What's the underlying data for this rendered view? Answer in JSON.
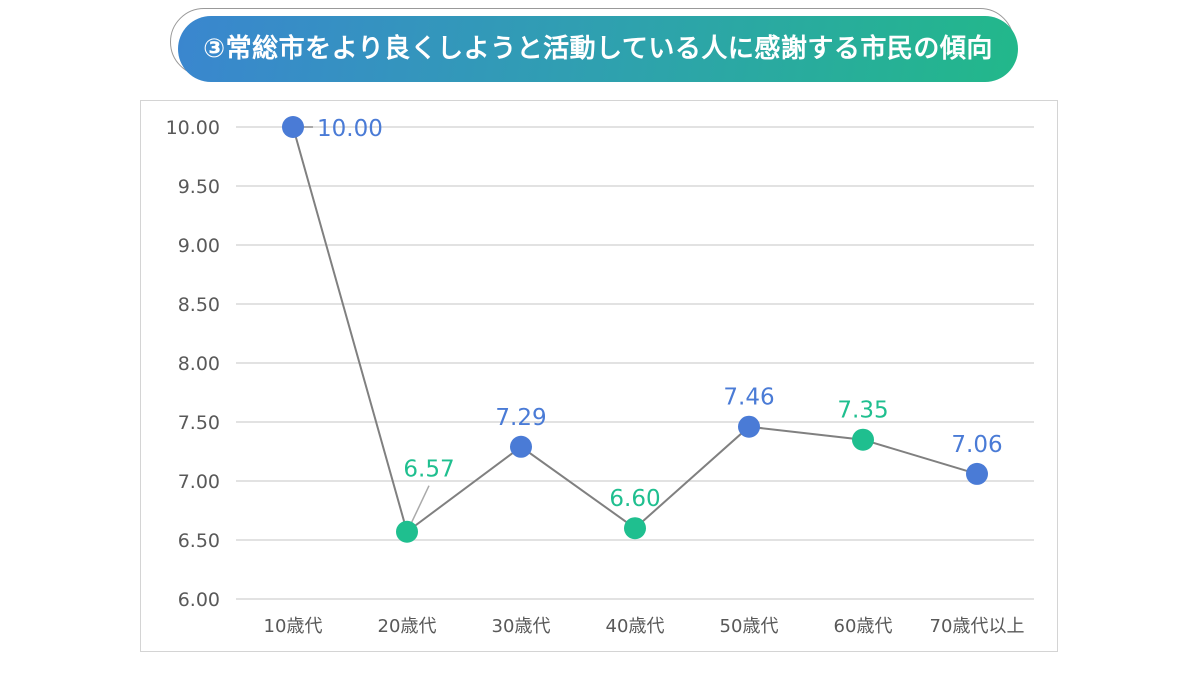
{
  "chart_data": {
    "type": "line",
    "title": "③常総市をより良くしようと活動している人に感謝する市民の傾向",
    "categories": [
      "10歳代",
      "20歳代",
      "30歳代",
      "40歳代",
      "50歳代",
      "60歳代",
      "70歳代以上"
    ],
    "values": [
      10.0,
      6.57,
      7.29,
      6.6,
      7.46,
      7.35,
      7.06
    ],
    "data_labels": [
      "10.00",
      "6.57",
      "7.29",
      "6.60",
      "7.46",
      "7.35",
      "7.06"
    ],
    "point_colors": [
      "#4a7bd6",
      "#1fbf8f",
      "#4a7bd6",
      "#1fbf8f",
      "#4a7bd6",
      "#1fbf8f",
      "#4a7bd6"
    ],
    "ylim": [
      6.0,
      10.0
    ],
    "yticks": [
      "6.00",
      "6.50",
      "7.00",
      "7.50",
      "8.00",
      "8.50",
      "9.00",
      "9.50",
      "10.00"
    ],
    "line_color": "#808080",
    "grid": true,
    "xlabel": "",
    "ylabel": ""
  }
}
